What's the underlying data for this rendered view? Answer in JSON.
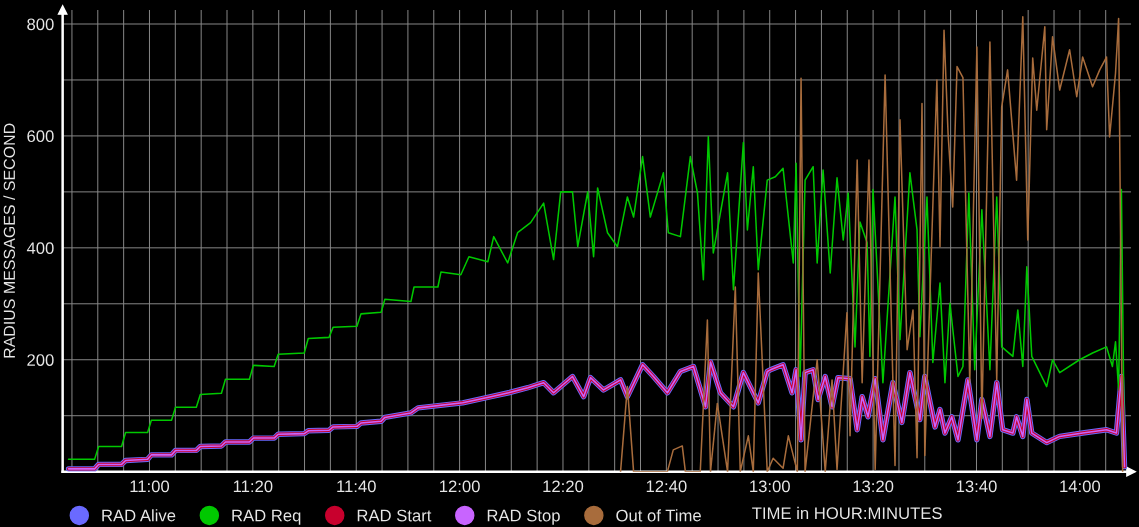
{
  "chart_data": {
    "type": "line",
    "ylabel": "RADIUS MESSAGES / SECOND",
    "xlabel": "TIME in HOUR:MINUTES",
    "xlim": [
      10.72,
      14.165
    ],
    "ylim": [
      0,
      825
    ],
    "xticks": [
      {
        "value": 10.75,
        "label": null
      },
      {
        "value": 10.8333,
        "label": null
      },
      {
        "value": 10.9167,
        "label": null
      },
      {
        "value": 11,
        "label": "11:00"
      },
      {
        "value": 11.0833,
        "label": null
      },
      {
        "value": 11.1667,
        "label": null
      },
      {
        "value": 11.25,
        "label": null
      },
      {
        "value": 11.3333,
        "label": "11:20"
      },
      {
        "value": 11.4167,
        "label": null
      },
      {
        "value": 11.5,
        "label": null
      },
      {
        "value": 11.5833,
        "label": null
      },
      {
        "value": 11.6667,
        "label": "11:40"
      },
      {
        "value": 11.75,
        "label": null
      },
      {
        "value": 11.8333,
        "label": null
      },
      {
        "value": 11.9167,
        "label": null
      },
      {
        "value": 12,
        "label": "12:00"
      },
      {
        "value": 12.0833,
        "label": null
      },
      {
        "value": 12.1667,
        "label": null
      },
      {
        "value": 12.25,
        "label": null
      },
      {
        "value": 12.3333,
        "label": "12:20"
      },
      {
        "value": 12.4167,
        "label": null
      },
      {
        "value": 12.5,
        "label": null
      },
      {
        "value": 12.5833,
        "label": null
      },
      {
        "value": 12.6667,
        "label": "12:40"
      },
      {
        "value": 12.75,
        "label": null
      },
      {
        "value": 12.8333,
        "label": null
      },
      {
        "value": 12.9167,
        "label": null
      },
      {
        "value": 13,
        "label": "13:00"
      },
      {
        "value": 13.0833,
        "label": null
      },
      {
        "value": 13.1667,
        "label": null
      },
      {
        "value": 13.25,
        "label": null
      },
      {
        "value": 13.3333,
        "label": "13:20"
      },
      {
        "value": 13.4167,
        "label": null
      },
      {
        "value": 13.5,
        "label": null
      },
      {
        "value": 13.5833,
        "label": null
      },
      {
        "value": 13.6667,
        "label": "13:40"
      },
      {
        "value": 13.75,
        "label": null
      },
      {
        "value": 13.8333,
        "label": null
      },
      {
        "value": 13.9167,
        "label": null
      },
      {
        "value": 14,
        "label": "14:00"
      },
      {
        "value": 14.0833,
        "label": null
      }
    ],
    "yticks": [
      {
        "value": 100,
        "label": null
      },
      200,
      {
        "value": 300,
        "label": null
      },
      400,
      {
        "value": 500,
        "label": null
      },
      600,
      {
        "value": 700,
        "label": null
      },
      800
    ],
    "grid": true,
    "legend": "bottom",
    "marker": "none",
    "line_style": "solid",
    "series": [
      {
        "name": "RAD Alive",
        "color": "#6a6aff",
        "x": [
          10.739,
          10.823,
          10.836,
          10.91,
          10.923,
          10.994,
          11.006,
          11.071,
          11.084,
          11.151,
          11.164,
          11.232,
          11.245,
          11.322,
          11.335,
          11.402,
          11.415,
          11.499,
          11.512,
          11.579,
          11.592,
          11.669,
          11.682,
          11.747,
          11.759,
          11.843,
          11.866,
          12.01,
          12.101,
          12.158,
          12.22,
          12.271,
          12.303,
          12.364,
          12.4,
          12.422,
          12.464,
          12.519,
          12.541,
          12.59,
          12.625,
          12.67,
          12.712,
          12.754,
          12.793,
          12.809,
          12.841,
          12.883,
          12.915,
          12.963,
          12.992,
          13.002,
          13.043,
          13.072,
          13.085,
          13.101,
          13.114,
          13.14,
          13.156,
          13.179,
          13.201,
          13.22,
          13.259,
          13.282,
          13.298,
          13.317,
          13.34,
          13.365,
          13.397,
          13.426,
          13.452,
          13.484,
          13.5,
          13.533,
          13.549,
          13.565,
          13.587,
          13.607,
          13.639,
          13.668,
          13.684,
          13.71,
          13.732,
          13.751,
          13.784,
          13.796,
          13.816,
          13.829,
          13.845,
          13.893,
          13.935,
          14.009,
          14.086,
          14.118,
          14.134,
          14.144
        ],
        "values": [
          5,
          5,
          13,
          13,
          20,
          22,
          30,
          30,
          38,
          38,
          45,
          46,
          53,
          53,
          60,
          60,
          67,
          68,
          73,
          74,
          80,
          81,
          87,
          90,
          97,
          105,
          114,
          123,
          134,
          141,
          150,
          159,
          141,
          170,
          134,
          168,
          146,
          164,
          134,
          191,
          170,
          141,
          179,
          188,
          116,
          196,
          141,
          116,
          177,
          123,
          179,
          182,
          191,
          141,
          182,
          57,
          177,
          182,
          129,
          170,
          116,
          168,
          166,
          75,
          134,
          98,
          166,
          57,
          159,
          88,
          177,
          93,
          170,
          80,
          111,
          69,
          98,
          57,
          164,
          57,
          129,
          63,
          159,
          75,
          69,
          98,
          63,
          129,
          69,
          52,
          63,
          69,
          75,
          69,
          170,
          9
        ]
      },
      {
        "name": "RAD Req",
        "color": "#00c800",
        "x": [
          10.739,
          10.823,
          10.836,
          10.91,
          10.923,
          10.994,
          11.006,
          11.071,
          11.084,
          11.151,
          11.164,
          11.232,
          11.245,
          11.322,
          11.335,
          11.402,
          11.415,
          11.499,
          11.512,
          11.579,
          11.592,
          11.669,
          11.682,
          11.747,
          11.759,
          11.843,
          11.853,
          11.93,
          11.94,
          12.004,
          12.03,
          12.091,
          12.11,
          12.155,
          12.187,
          12.229,
          12.271,
          12.303,
          12.326,
          12.364,
          12.381,
          12.413,
          12.432,
          12.445,
          12.477,
          12.509,
          12.541,
          12.561,
          12.59,
          12.615,
          12.657,
          12.673,
          12.712,
          12.744,
          12.767,
          12.786,
          12.802,
          12.818,
          12.864,
          12.883,
          12.915,
          12.928,
          12.947,
          12.963,
          12.992,
          13.018,
          13.043,
          13.076,
          13.085,
          13.098,
          13.114,
          13.14,
          13.153,
          13.172,
          13.195,
          13.217,
          13.237,
          13.253,
          13.275,
          13.291,
          13.314,
          13.323,
          13.333,
          13.365,
          13.404,
          13.42,
          13.452,
          13.475,
          13.484,
          13.507,
          13.526,
          13.549,
          13.565,
          13.581,
          13.607,
          13.623,
          13.642,
          13.661,
          13.684,
          13.71,
          13.732,
          13.748,
          13.784,
          13.8,
          13.816,
          13.829,
          13.845,
          13.893,
          13.912,
          13.935,
          13.999,
          14.041,
          14.086,
          14.105,
          14.115,
          14.125,
          14.134,
          14.144
        ],
        "values": [
          22,
          22,
          45,
          45,
          70,
          70,
          92,
          92,
          115,
          115,
          138,
          140,
          165,
          165,
          190,
          188,
          210,
          212,
          238,
          240,
          258,
          260,
          282,
          285,
          308,
          304,
          330,
          330,
          357,
          352,
          384,
          375,
          420,
          373,
          427,
          445,
          480,
          379,
          500,
          500,
          402,
          500,
          384,
          507,
          427,
          402,
          491,
          455,
          563,
          455,
          534,
          427,
          420,
          563,
          498,
          343,
          599,
          391,
          534,
          325,
          588,
          432,
          545,
          361,
          521,
          527,
          542,
          373,
          551,
          170,
          521,
          545,
          373,
          539,
          355,
          525,
          414,
          498,
          223,
          446,
          409,
          206,
          504,
          159,
          491,
          236,
          534,
          432,
          241,
          491,
          195,
          337,
          159,
          301,
          170,
          188,
          498,
          182,
          468,
          182,
          491,
          223,
          206,
          289,
          188,
          366,
          206,
          152,
          200,
          177,
          200,
          212,
          223,
          188,
          232,
          146,
          504,
          9
        ]
      },
      {
        "name": "RAD Start",
        "color": "#c8002d",
        "x": [
          10.739,
          10.823,
          10.836,
          10.91,
          10.923,
          10.994,
          11.006,
          11.071,
          11.084,
          11.151,
          11.164,
          11.232,
          11.245,
          11.322,
          11.335,
          11.402,
          11.415,
          11.499,
          11.512,
          11.579,
          11.592,
          11.669,
          11.682,
          11.747,
          11.759,
          11.843,
          11.866,
          12.01,
          12.101,
          12.158,
          12.22,
          12.271,
          12.303,
          12.364,
          12.4,
          12.422,
          12.464,
          12.519,
          12.541,
          12.59,
          12.625,
          12.67,
          12.712,
          12.754,
          12.793,
          12.809,
          12.841,
          12.883,
          12.915,
          12.963,
          12.992,
          13.002,
          13.043,
          13.072,
          13.085,
          13.101,
          13.114,
          13.14,
          13.156,
          13.179,
          13.201,
          13.22,
          13.259,
          13.282,
          13.298,
          13.317,
          13.34,
          13.365,
          13.397,
          13.426,
          13.452,
          13.484,
          13.5,
          13.533,
          13.549,
          13.565,
          13.587,
          13.607,
          13.639,
          13.668,
          13.684,
          13.71,
          13.732,
          13.751,
          13.784,
          13.796,
          13.816,
          13.829,
          13.845,
          13.893,
          13.935,
          14.009,
          14.086,
          14.118,
          14.134,
          14.144
        ],
        "values": [
          5,
          5,
          13,
          13,
          20,
          22,
          30,
          30,
          38,
          38,
          45,
          46,
          53,
          53,
          60,
          60,
          67,
          68,
          73,
          74,
          80,
          81,
          87,
          90,
          97,
          105,
          114,
          123,
          134,
          141,
          150,
          159,
          141,
          170,
          134,
          168,
          146,
          164,
          134,
          191,
          170,
          141,
          179,
          188,
          116,
          196,
          141,
          116,
          177,
          123,
          179,
          182,
          191,
          141,
          182,
          57,
          177,
          182,
          129,
          170,
          116,
          168,
          166,
          75,
          134,
          98,
          166,
          57,
          159,
          88,
          177,
          93,
          170,
          80,
          111,
          69,
          98,
          57,
          164,
          57,
          129,
          63,
          159,
          75,
          69,
          98,
          63,
          129,
          69,
          52,
          63,
          69,
          75,
          69,
          170,
          9
        ]
      },
      {
        "name": "RAD Stop",
        "color": "#c864ff",
        "x": [
          10.739,
          10.823,
          10.836,
          10.91,
          10.923,
          10.994,
          11.006,
          11.071,
          11.084,
          11.151,
          11.164,
          11.232,
          11.245,
          11.322,
          11.335,
          11.402,
          11.415,
          11.499,
          11.512,
          11.579,
          11.592,
          11.669,
          11.682,
          11.747,
          11.759,
          11.843,
          11.866,
          12.01,
          12.101,
          12.158,
          12.22,
          12.271,
          12.303,
          12.364,
          12.4,
          12.422,
          12.464,
          12.519,
          12.541,
          12.59,
          12.625,
          12.67,
          12.712,
          12.754,
          12.793,
          12.809,
          12.841,
          12.883,
          12.915,
          12.963,
          12.992,
          13.002,
          13.043,
          13.072,
          13.085,
          13.101,
          13.114,
          13.14,
          13.156,
          13.179,
          13.201,
          13.22,
          13.259,
          13.282,
          13.298,
          13.317,
          13.34,
          13.365,
          13.397,
          13.426,
          13.452,
          13.484,
          13.5,
          13.533,
          13.549,
          13.565,
          13.587,
          13.607,
          13.639,
          13.668,
          13.684,
          13.71,
          13.732,
          13.751,
          13.784,
          13.796,
          13.816,
          13.829,
          13.845,
          13.893,
          13.935,
          14.009,
          14.086,
          14.118,
          14.134,
          14.144
        ],
        "values": [
          5,
          5,
          13,
          13,
          20,
          22,
          30,
          30,
          38,
          38,
          45,
          46,
          53,
          53,
          60,
          60,
          67,
          68,
          73,
          74,
          80,
          81,
          87,
          90,
          97,
          105,
          114,
          123,
          134,
          141,
          150,
          159,
          141,
          170,
          134,
          168,
          146,
          164,
          134,
          191,
          170,
          141,
          179,
          188,
          116,
          196,
          141,
          116,
          177,
          123,
          179,
          182,
          191,
          141,
          182,
          57,
          177,
          182,
          129,
          170,
          116,
          168,
          166,
          75,
          134,
          98,
          166,
          57,
          159,
          88,
          177,
          93,
          170,
          80,
          111,
          69,
          98,
          57,
          164,
          57,
          129,
          63,
          159,
          75,
          69,
          98,
          63,
          129,
          69,
          52,
          63,
          69,
          75,
          69,
          170,
          9
        ]
      },
      {
        "name": "Out of Time",
        "color": "#a86c3c",
        "x": [
          12.519,
          12.541,
          12.561,
          12.67,
          12.689,
          12.718,
          12.728,
          12.776,
          12.799,
          12.809,
          12.831,
          12.864,
          12.889,
          12.905,
          12.931,
          12.947,
          12.963,
          12.992,
          13.011,
          13.043,
          13.06,
          13.089,
          13.101,
          13.114,
          13.153,
          13.179,
          13.201,
          13.217,
          13.249,
          13.259,
          13.282,
          13.298,
          13.32,
          13.34,
          13.372,
          13.404,
          13.42,
          13.443,
          13.462,
          13.475,
          13.491,
          13.5,
          13.539,
          13.549,
          13.562,
          13.575,
          13.59,
          13.604,
          13.623,
          13.645,
          13.668,
          13.684,
          13.71,
          13.732,
          13.748,
          13.767,
          13.796,
          13.816,
          13.832,
          13.848,
          13.861,
          13.887,
          13.893,
          13.912,
          13.935,
          13.967,
          13.99,
          14.009,
          14.041,
          14.064,
          14.086,
          14.096,
          14.115,
          14.125,
          14.138
        ],
        "values": [
          0,
          152,
          0,
          0,
          39,
          46,
          0,
          0,
          271,
          0,
          122,
          0,
          330,
          0,
          64,
          0,
          355,
          0,
          24,
          6,
          64,
          0,
          703,
          0,
          200,
          0,
          164,
          4,
          284,
          64,
          557,
          159,
          557,
          4,
          709,
          11,
          629,
          218,
          289,
          25,
          658,
          29,
          700,
          402,
          789,
          605,
          473,
          724,
          704,
          159,
          759,
          95,
          768,
          164,
          652,
          718,
          521,
          813,
          414,
          739,
          646,
          795,
          611,
          777,
          682,
          754,
          670,
          741,
          688,
          718,
          741,
          598,
          712,
          810,
          0
        ]
      }
    ]
  }
}
